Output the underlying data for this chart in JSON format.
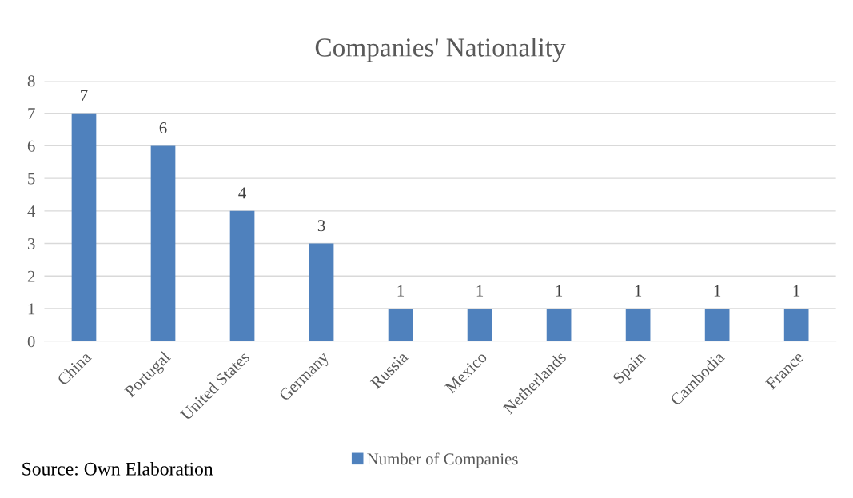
{
  "chart_data": {
    "type": "bar",
    "title": "Companies' Nationality",
    "categories": [
      "China",
      "Portugal",
      "United States",
      "Germany",
      "Russia",
      "Mexico",
      "Netherlands",
      "Spain",
      "Cambodia",
      "France"
    ],
    "series": [
      {
        "name": "Number of Companies",
        "color": "#4f81bd",
        "values": [
          7,
          6,
          4,
          3,
          1,
          1,
          1,
          1,
          1,
          1
        ]
      }
    ],
    "ylim": [
      0,
      8
    ],
    "yticks": [
      0,
      1,
      2,
      3,
      4,
      5,
      6,
      7,
      8
    ],
    "grid": "y",
    "data_labels": true,
    "legend": "bottom",
    "annotations": [
      "Source: Own Elaboration"
    ]
  }
}
